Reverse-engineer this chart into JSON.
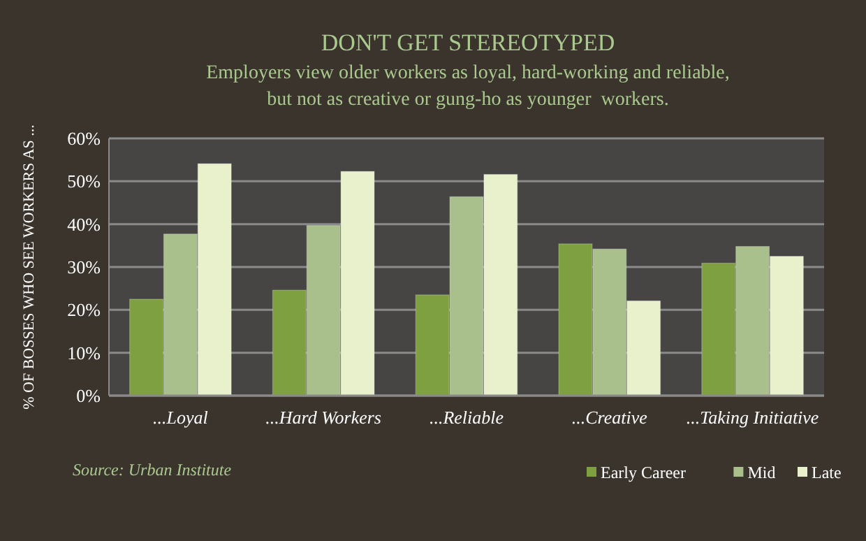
{
  "chart_data": {
    "type": "bar",
    "title": "DON'T GET STEREOTYPED",
    "subtitle": "Employers view older workers as loyal, hard-working and reliable,\nbut not as creative or gung-ho as younger  workers.",
    "ylabel": "% OF BOSSES WHO  SEE WORKERS AS ...",
    "categories": [
      "...Loyal",
      "...Hard Workers",
      "...Reliable",
      "...Creative",
      "...Taking Initiative"
    ],
    "series": [
      {
        "name": "Early Career",
        "color": "#7fa040",
        "values": [
          22.5,
          24.6,
          23.5,
          35.4,
          30.9
        ]
      },
      {
        "name": "Mid",
        "color": "#a9bf8c",
        "values": [
          37.7,
          39.7,
          46.4,
          34.2,
          34.8
        ]
      },
      {
        "name": "Late",
        "color": "#e8f0cc",
        "values": [
          54.1,
          52.3,
          51.6,
          22.1,
          32.5
        ]
      }
    ],
    "ylim": [
      0,
      60
    ],
    "yticks": [
      {
        "value": 0,
        "label": "0%"
      },
      {
        "value": 10,
        "label": "10%"
      },
      {
        "value": 20,
        "label": "20%"
      },
      {
        "value": 30,
        "label": "30%"
      },
      {
        "value": 40,
        "label": "40%"
      },
      {
        "value": 50,
        "label": "50%"
      },
      {
        "value": 60,
        "label": "60%"
      }
    ],
    "grid": "y",
    "legend": "bottom right",
    "annotations": [
      "Source: Urban Institute"
    ]
  }
}
